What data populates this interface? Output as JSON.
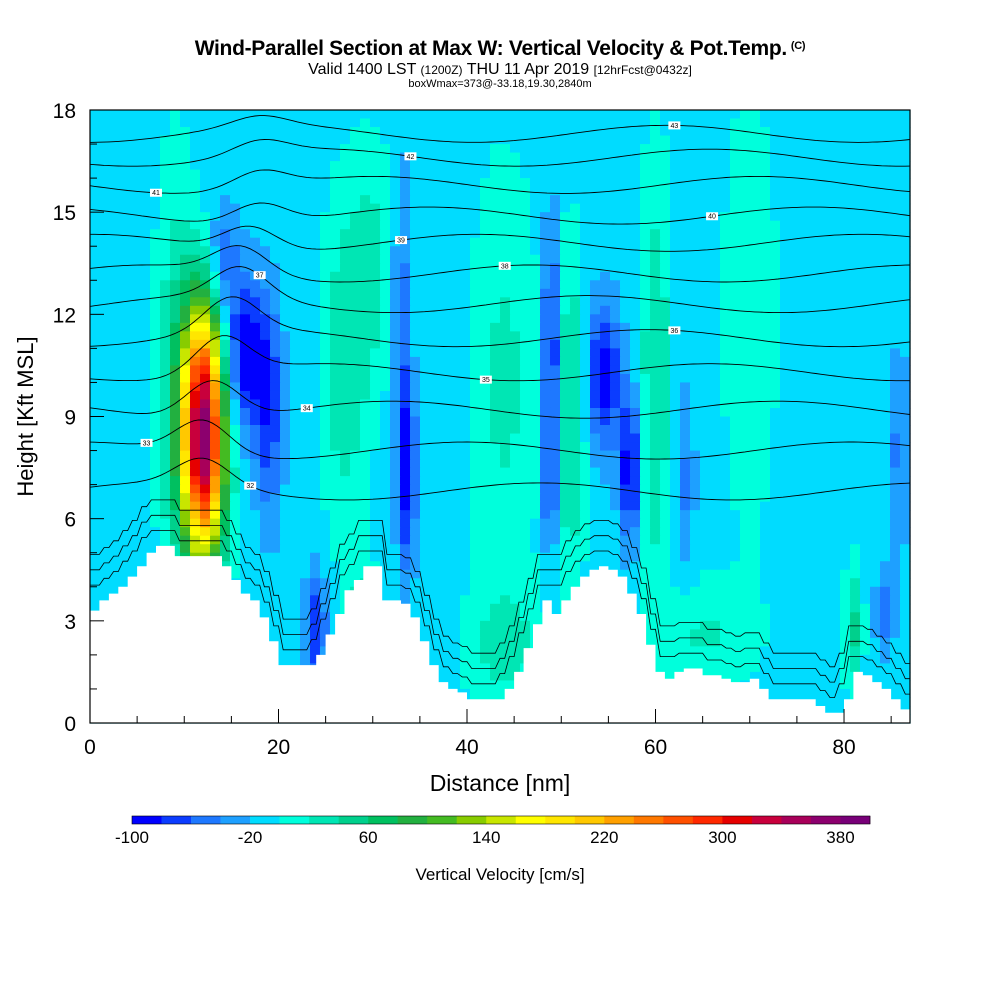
{
  "header": {
    "title": "Wind-Parallel Section at Max W: Vertical Velocity & Pot.Temp.",
    "copyright": "(C)",
    "valid": "Valid 1400 LST",
    "zulu": "(1200Z)",
    "date": "THU 11 Apr 2019",
    "forecast": "[12hrFcst@0432z]",
    "box_info": "boxWmax=373@-33.18,19.30,2840m"
  },
  "chart_data": {
    "type": "heatmap",
    "title": "Wind-Parallel Section at Max W: Vertical Velocity & Pot.Temp.",
    "xlabel": "Distance [nm]",
    "ylabel": "Height [Kft MSL]",
    "xlim": [
      0,
      87
    ],
    "ylim": [
      0,
      18
    ],
    "xticks": [
      "0",
      "20",
      "40",
      "60",
      "80"
    ],
    "xtick_values": [
      0,
      20,
      40,
      60,
      80
    ],
    "yticks": [
      "0",
      "3",
      "6",
      "9",
      "12",
      "15",
      "18"
    ],
    "ytick_values": [
      0,
      3,
      6,
      9,
      12,
      15,
      18
    ],
    "colorbar": {
      "label": "Vertical Velocity [cm/s]",
      "min": -100,
      "max": 400,
      "step": 20,
      "tick_labels": [
        "-100",
        "-20",
        "60",
        "140",
        "220",
        "300",
        "380"
      ],
      "tick_values": [
        -100,
        -20,
        60,
        140,
        220,
        300,
        380
      ],
      "colors": [
        "#0000ff",
        "#0b3cff",
        "#1e78ff",
        "#1ea0ff",
        "#00dcff",
        "#00ffdc",
        "#00e6b4",
        "#00d08c",
        "#00c060",
        "#22b040",
        "#44bb22",
        "#88cc00",
        "#c8e600",
        "#ffff00",
        "#ffe600",
        "#ffc800",
        "#ffa000",
        "#ff7800",
        "#ff5000",
        "#ff2800",
        "#e60000",
        "#c8003c",
        "#a8005a",
        "#8c006e",
        "#780078"
      ]
    },
    "background_value": -10,
    "features": [
      {
        "name": "updraft-core",
        "x": 12,
        "y": 8.5,
        "sx": 1.6,
        "sy": 2.6,
        "value": 375
      },
      {
        "name": "downdraft-anvil",
        "x": 16.5,
        "y": 10.8,
        "sx": 1.6,
        "sy": 1.6,
        "value": -100
      },
      {
        "name": "downdraft-slant",
        "x": 19.0,
        "y": 9.0,
        "sx": 1.0,
        "sy": 2.2,
        "value": -70
      },
      {
        "name": "downdraft-upper",
        "x": 14.0,
        "y": 13.5,
        "sx": 1.2,
        "sy": 1.3,
        "value": -60
      },
      {
        "name": "downdraft-low",
        "x": 24.0,
        "y": 2.8,
        "sx": 0.8,
        "sy": 1.2,
        "value": -80
      },
      {
        "name": "downdraft-34",
        "x": 33.6,
        "y": 7.4,
        "sx": 0.7,
        "sy": 2.0,
        "value": -95
      },
      {
        "name": "downdraft-34-upper",
        "x": 33.0,
        "y": 12.5,
        "sx": 0.6,
        "sy": 2.8,
        "value": -55
      },
      {
        "name": "downdraft-49",
        "x": 48.9,
        "y": 10.6,
        "sx": 0.6,
        "sy": 2.8,
        "value": -100
      },
      {
        "name": "downdraft-49-low",
        "x": 48.8,
        "y": 7.0,
        "sx": 0.5,
        "sy": 1.2,
        "value": -65
      },
      {
        "name": "downdraft-55",
        "x": 54.5,
        "y": 10.2,
        "sx": 1.3,
        "sy": 1.5,
        "value": -95
      },
      {
        "name": "downdraft-57",
        "x": 57.3,
        "y": 7.4,
        "sx": 0.8,
        "sy": 1.5,
        "value": -100
      },
      {
        "name": "downdraft-63",
        "x": 63.0,
        "y": 7.0,
        "sx": 0.8,
        "sy": 2.0,
        "value": -45
      },
      {
        "name": "downdraft-86",
        "x": 85.8,
        "y": 8.0,
        "sx": 0.8,
        "sy": 2.0,
        "value": -45
      },
      {
        "name": "downdraft-84-low",
        "x": 84.3,
        "y": 3.2,
        "sx": 0.7,
        "sy": 0.9,
        "value": -50
      },
      {
        "name": "updraft-9",
        "x": 9.0,
        "y": 10.5,
        "sx": 1.5,
        "sy": 4.5,
        "value": 30
      },
      {
        "name": "updraft-27",
        "x": 27.0,
        "y": 10.5,
        "sx": 1.8,
        "sy": 3.5,
        "value": 35
      },
      {
        "name": "updraft-30",
        "x": 30.0,
        "y": 13.5,
        "sx": 1.6,
        "sy": 2.5,
        "value": 25
      },
      {
        "name": "updraft-44",
        "x": 44.0,
        "y": 10.0,
        "sx": 2.5,
        "sy": 4.5,
        "value": 25
      },
      {
        "name": "updraft-51",
        "x": 51.0,
        "y": 9.0,
        "sx": 1.1,
        "sy": 3.5,
        "value": 45
      },
      {
        "name": "updraft-60",
        "x": 60.0,
        "y": 10.0,
        "sx": 1.2,
        "sy": 4.5,
        "value": 40
      },
      {
        "name": "updraft-70",
        "x": 70.0,
        "y": 12.0,
        "sx": 2.0,
        "sy": 4.5,
        "value": 20
      },
      {
        "name": "updraft-29-low",
        "x": 29.0,
        "y": 3.0,
        "sx": 1.2,
        "sy": 1.0,
        "value": 45
      },
      {
        "name": "updraft-44-low",
        "x": 44.0,
        "y": 2.2,
        "sx": 3.0,
        "sy": 1.3,
        "value": 25
      },
      {
        "name": "updraft-65-low",
        "x": 65.0,
        "y": 2.6,
        "sx": 4.0,
        "sy": 1.2,
        "value": 22
      },
      {
        "name": "updraft-81-low",
        "x": 81.0,
        "y": 2.8,
        "sx": 0.7,
        "sy": 1.3,
        "value": 45
      }
    ],
    "terrain": {
      "x": [
        0,
        1,
        2,
        3,
        4,
        5,
        6,
        7,
        8,
        9,
        10,
        11,
        12,
        13,
        14,
        15,
        16,
        17,
        18,
        19,
        20,
        21,
        22,
        23,
        24,
        25,
        26,
        27,
        28,
        29,
        30,
        31,
        32,
        33,
        34,
        35,
        36,
        37,
        38,
        39,
        40,
        41,
        42,
        43,
        44,
        45,
        46,
        47,
        48,
        49,
        50,
        51,
        52,
        53,
        54,
        55,
        56,
        57,
        58,
        59,
        60,
        61,
        62,
        63,
        64,
        65,
        66,
        67,
        68,
        69,
        70,
        71,
        72,
        73,
        74,
        75,
        76,
        77,
        78,
        79,
        80,
        81,
        82,
        83,
        84,
        85,
        86,
        87
      ],
      "height": [
        3.3,
        3.6,
        3.8,
        4.0,
        4.3,
        4.6,
        5.0,
        5.2,
        5.2,
        4.9,
        4.9,
        4.9,
        4.9,
        4.9,
        4.6,
        4.2,
        3.8,
        3.6,
        3.1,
        2.4,
        1.7,
        1.7,
        1.7,
        1.7,
        2.0,
        2.6,
        3.2,
        3.9,
        4.2,
        4.6,
        4.6,
        3.6,
        3.6,
        3.5,
        3.1,
        2.4,
        1.7,
        1.2,
        1.0,
        0.9,
        0.7,
        0.7,
        0.7,
        0.7,
        1.0,
        1.5,
        2.2,
        2.9,
        3.6,
        3.2,
        3.6,
        4.0,
        4.3,
        4.5,
        4.6,
        4.5,
        4.3,
        3.8,
        3.2,
        2.3,
        1.5,
        1.3,
        1.5,
        1.6,
        1.6,
        1.4,
        1.4,
        1.3,
        1.2,
        1.2,
        1.3,
        1.0,
        0.7,
        0.7,
        0.7,
        0.7,
        0.7,
        0.5,
        0.3,
        0.3,
        0.7,
        1.5,
        1.4,
        1.2,
        1.0,
        0.7,
        0.4,
        0.2
      ]
    },
    "contours": [
      {
        "label": "32",
        "base": 6.8,
        "amp": 0.8,
        "bump_x": 12,
        "label_x": 17
      },
      {
        "label": "33",
        "base": 8.0,
        "amp": 1.0,
        "bump_x": 12,
        "label_x": 6
      },
      {
        "label": "34",
        "base": 9.2,
        "amp": 1.1,
        "bump_x": 13,
        "label_x": 23
      },
      {
        "label": "35",
        "base": 10.3,
        "amp": 1.1,
        "bump_x": 14,
        "label_x": 42
      },
      {
        "label": "36",
        "base": 11.3,
        "amp": 1.0,
        "bump_x": 15,
        "label_x": 62
      },
      {
        "label": "37",
        "base": 12.3,
        "amp": 0.9,
        "bump_x": 16,
        "label_x": 18
      },
      {
        "label": "38",
        "base": 13.2,
        "amp": 0.8,
        "bump_x": 16,
        "label_x": 44
      },
      {
        "label": "39",
        "base": 14.1,
        "amp": 0.7,
        "bump_x": 17,
        "label_x": 33
      },
      {
        "label": "40",
        "base": 14.9,
        "amp": 0.6,
        "bump_x": 18,
        "label_x": 66
      },
      {
        "label": "41",
        "base": 15.8,
        "amp": 0.5,
        "bump_x": 18,
        "label_x": 7
      },
      {
        "label": "42",
        "base": 16.6,
        "amp": 0.4,
        "bump_x": 18,
        "label_x": 34
      },
      {
        "label": "43",
        "base": 17.3,
        "amp": 0.3,
        "bump_x": 18,
        "label_x": 62
      }
    ]
  }
}
